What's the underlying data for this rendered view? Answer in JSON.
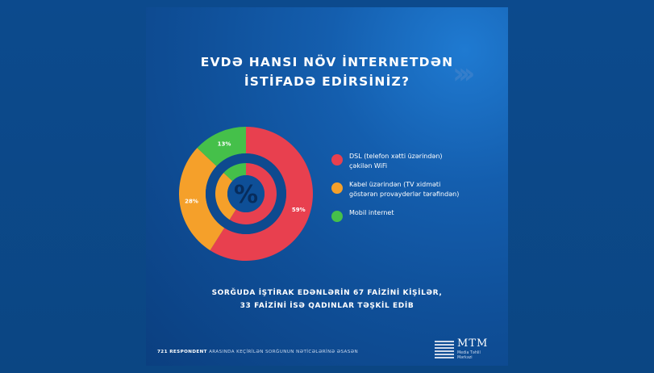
{
  "title": {
    "line1": "EVDƏ HANSI NÖV İNTERNETDƏN",
    "line2": "İSTİFADƏ EDİRSİNİZ?"
  },
  "center_symbol": "%",
  "chart_data": {
    "type": "pie",
    "categories": [
      "DSL (telefon xətti üzərindən) çəkilən WiFi",
      "Kabel üzərindən (TV xidməti göstərən provayderlər tərəfindən)",
      "Mobil internet"
    ],
    "values": [
      59,
      28,
      13
    ],
    "labels": [
      "59%",
      "28%",
      "13%"
    ],
    "colors": [
      "#e8404f",
      "#f5a02a",
      "#45c04a"
    ],
    "legend_position": "right"
  },
  "legend": [
    {
      "line1": "DSL (telefon xətti üzərindən)",
      "line2": "çəkilən WiFi",
      "color": "#e8404f"
    },
    {
      "line1": "Kabel üzərindən (TV xidməti",
      "line2": "göstərən provayderlər tərəfindən)",
      "color": "#f5a02a"
    },
    {
      "line1": "Mobil internet",
      "line2": "",
      "color": "#45c04a"
    }
  ],
  "note": {
    "line1": "SORĞUDA İŞTİRAK EDƏNLƏRİN 67 FAİZİNİ KİŞİLƏR,",
    "line2": "33 FAİZİNİ İSƏ QADINLAR TƏŞKİL EDİB"
  },
  "footer": {
    "bold": "721 RESPONDENT",
    "text": " ARASINDA KEÇİRİLƏN SORĞUNUN NƏTİCƏLƏRİNƏ ƏSASƏN"
  },
  "logo": {
    "name": "MTM",
    "sub1": "Media Təhlil",
    "sub2": "Mərkəzi"
  }
}
